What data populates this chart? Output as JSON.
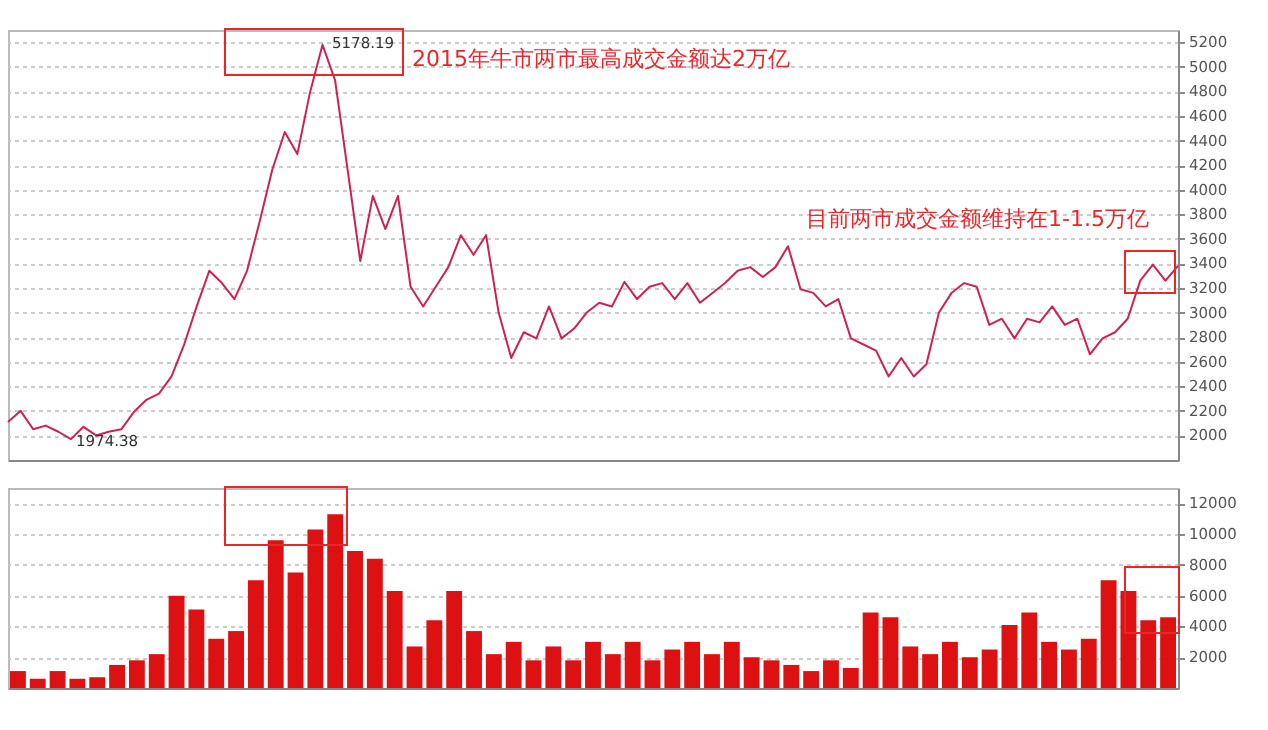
{
  "chart_data": [
    {
      "type": "line",
      "color": "#cc2255",
      "grid": "y",
      "tick_labels": "y",
      "ylim": [
        1800,
        5300
      ],
      "yticks": [
        2000,
        2200,
        2400,
        2600,
        2800,
        3000,
        3200,
        3400,
        3600,
        3800,
        4000,
        4200,
        4400,
        4600,
        4800,
        5000,
        5200
      ],
      "categories": [
        null,
        null,
        null,
        null,
        null,
        null,
        null,
        null,
        null,
        null,
        null,
        null,
        null,
        null,
        null,
        null,
        null,
        null,
        null,
        null,
        null,
        null,
        null,
        null,
        null,
        null,
        null,
        null,
        null,
        null,
        null,
        null,
        null,
        null,
        null,
        null,
        null,
        null,
        null,
        null,
        null,
        null,
        null,
        null,
        null,
        null,
        null,
        null,
        null,
        null,
        null,
        null,
        null,
        null,
        null,
        null,
        null,
        null,
        null,
        null,
        null,
        null,
        null,
        null,
        null,
        null,
        null,
        null,
        null,
        null,
        null,
        null,
        null,
        null,
        null,
        null,
        null,
        null,
        null,
        null,
        null,
        null,
        null,
        null,
        null,
        null,
        null,
        null,
        null,
        null,
        null,
        null,
        null,
        null
      ],
      "values": [
        2110,
        2200,
        2050,
        2080,
        2030,
        1970,
        2070,
        2000,
        2030,
        2050,
        2190,
        2290,
        2340,
        2480,
        2740,
        3050,
        3340,
        3240,
        3110,
        3340,
        3740,
        4160,
        4470,
        4290,
        4790,
        5180,
        4890,
        4160,
        3420,
        3950,
        3680,
        3950,
        3210,
        3050,
        3210,
        3370,
        3630,
        3470,
        3630,
        3000,
        2630,
        2840,
        2790,
        3050,
        2790,
        2870,
        3000,
        3080,
        3050,
        3250,
        3110,
        3210,
        3240,
        3110,
        3240,
        3080,
        3160,
        3240,
        3340,
        3370,
        3290,
        3370,
        3540,
        3190,
        3160,
        3050,
        3110,
        2790,
        2740,
        2690,
        2480,
        2630,
        2480,
        2580,
        3000,
        3160,
        3240,
        3210,
        2900,
        2950,
        2790,
        2950,
        2920,
        3050,
        2900,
        2950,
        2660,
        2790,
        2840,
        2950,
        3260,
        3390,
        3260,
        3380
      ],
      "annotations": [
        "2015年牛市两市最高成交金额达2万亿",
        "目前两市成交金额维持在1-1.5万亿",
        "5178.19",
        "1974.38"
      ]
    },
    {
      "type": "bar",
      "color": "#dd1111",
      "grid": "y",
      "tick_labels": "y",
      "ylim": [
        0,
        13000
      ],
      "yticks": [
        2000,
        4000,
        6000,
        8000,
        10000,
        12000
      ],
      "categories": [
        null,
        null,
        null,
        null,
        null,
        null,
        null,
        null,
        null,
        null,
        null,
        null,
        null,
        null,
        null,
        null,
        null,
        null,
        null,
        null,
        null,
        null,
        null,
        null,
        null,
        null,
        null,
        null,
        null,
        null,
        null,
        null,
        null,
        null,
        null,
        null,
        null,
        null,
        null,
        null,
        null,
        null,
        null,
        null,
        null,
        null,
        null,
        null,
        null,
        null,
        null,
        null,
        null,
        null,
        null,
        null,
        null,
        null,
        null
      ],
      "values": [
        1100,
        600,
        1100,
        600,
        700,
        1500,
        1800,
        2200,
        6000,
        5100,
        3200,
        3700,
        7000,
        9600,
        7500,
        10300,
        11300,
        8900,
        8400,
        6300,
        2700,
        4400,
        6300,
        3700,
        2200,
        3000,
        1800,
        2700,
        1800,
        3000,
        2200,
        3000,
        1800,
        2500,
        3000,
        2200,
        3000,
        2000,
        1800,
        1500,
        1100,
        1800,
        1300,
        4900,
        4600,
        2700,
        2200,
        3000,
        2000,
        2500,
        4100,
        4900,
        3000,
        2500,
        3200,
        7000,
        6300,
        4400,
        4600
      ]
    }
  ]
}
